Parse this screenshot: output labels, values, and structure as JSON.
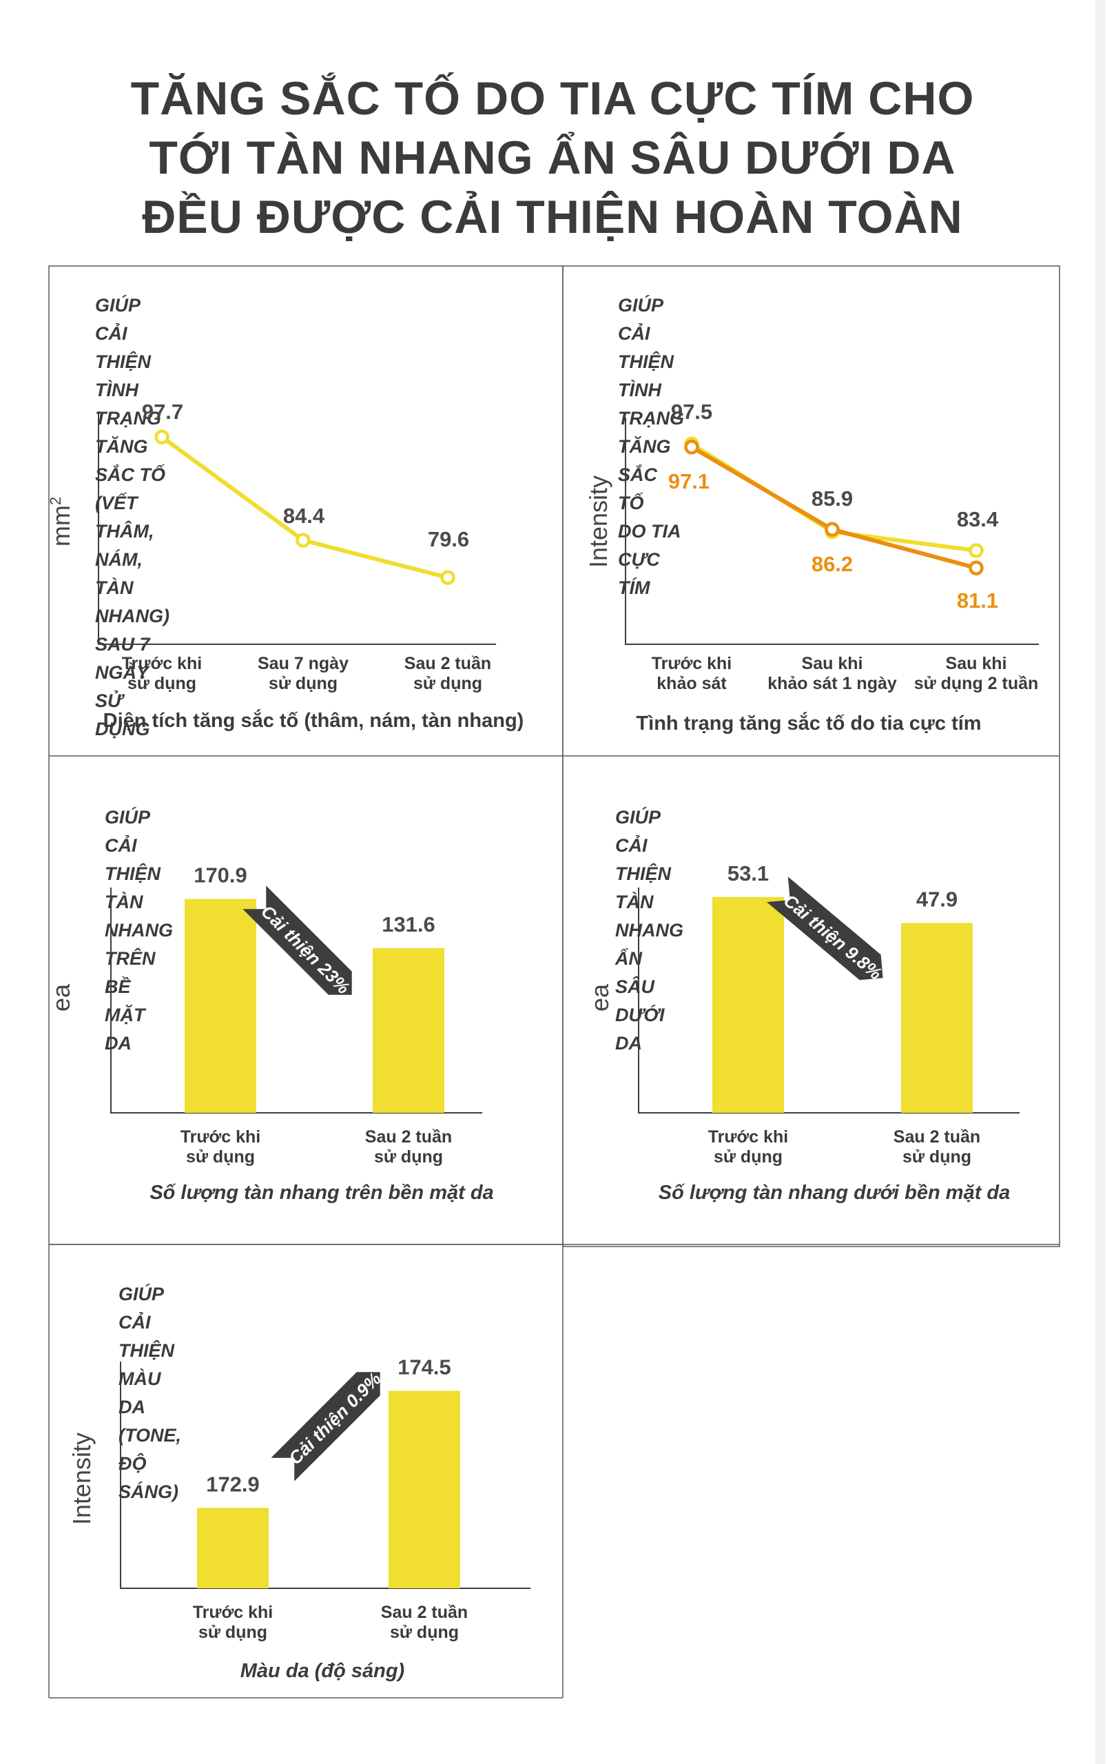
{
  "title_lines": [
    "TĂNG SẮC TỐ DO TIA CỰC TÍM CHO",
    "TỚI TÀN NHANG ẨN SÂU DƯỚI DA",
    "ĐỀU ĐƯỢC CẢI THIỆN HOÀN TOÀN"
  ],
  "colors": {
    "yellow_line": "#f0dd2c",
    "orange_line": "#eb8f10",
    "bar": "#f0de30",
    "badge": "#3d3d3d",
    "axis": "#3d3d3d",
    "text": "#3b3b3b"
  },
  "chart_data": [
    {
      "id": "c1",
      "type": "line",
      "title_lines": [
        "GIÚP CẢI THIỆN TÌNH TRẠNG TĂNG SẮC TỐ",
        "(VẾT THÂM, NÁM, TÀN NHANG) SAU 7 NGÀY",
        "SỬ DỤNG"
      ],
      "categories": [
        [
          "Trước khi",
          "sử dụng"
        ],
        [
          "Sau 7 ngày",
          "sử dụng"
        ],
        [
          "Sau 2 tuần",
          "sử dụng"
        ]
      ],
      "series": [
        {
          "name": "Diện tích",
          "values": [
            97.7,
            84.4,
            79.6
          ],
          "labels": [
            "97.7",
            "84.4",
            "79.6"
          ],
          "color": "#f0dd2c"
        }
      ],
      "ylabel": "mm",
      "ylabel_sup": "2",
      "xlabel": "Diện tích tăng sắc tố (thâm, nám, tàn nhang)",
      "ylim": [
        71,
        101
      ]
    },
    {
      "id": "c2",
      "type": "line",
      "title_lines": [
        "GIÚP CẢI THIỆN TÌNH TRẠNG TĂNG SẮC TỐ",
        "DO TIA CỰC TÍM"
      ],
      "categories": [
        [
          "Trước khi",
          "khảo sát"
        ],
        [
          "Sau khi",
          "khảo sát 1 ngày"
        ],
        [
          "Sau khi",
          "sử dụng 2 tuần"
        ]
      ],
      "series": [
        {
          "name": "series-yellow",
          "values": [
            97.5,
            85.9,
            83.4
          ],
          "labels": [
            "97.5",
            "85.9",
            "83.4"
          ],
          "color": "#f0dd2c"
        },
        {
          "name": "series-orange",
          "values": [
            97.1,
            86.2,
            81.1
          ],
          "labels": [
            "97.1",
            "86.2",
            "81.1"
          ],
          "color": "#eb8f10"
        }
      ],
      "ylabel": "Intensity",
      "xlabel": "Tình trạng tăng sắc tố do tia cực tím",
      "ylim": [
        71,
        101
      ]
    },
    {
      "id": "c3",
      "type": "bar",
      "title_lines": [
        "GIÚP CẢI THIỆN TÀN NHANG TRÊN BỀ MẶT DA"
      ],
      "categories": [
        [
          "Trước khi",
          "sử dụng"
        ],
        [
          "Sau 2 tuần",
          "sử dụng"
        ]
      ],
      "values": [
        170.9,
        131.6
      ],
      "labels": [
        "170.9",
        "131.6"
      ],
      "ylabel": "ea",
      "xlabel": "Số lượng tàn nhang trên bền mặt da",
      "badge": "Cải thiện 23%",
      "ylim": [
        0,
        180
      ]
    },
    {
      "id": "c4",
      "type": "bar",
      "title_lines": [
        "GIÚP CẢI THIỆN TÀN NHANG ẨN SÂU DƯỚI DA"
      ],
      "categories": [
        [
          "Trước khi",
          "sử dụng"
        ],
        [
          "Sau 2 tuần",
          "sử dụng"
        ]
      ],
      "values": [
        53.1,
        47.9
      ],
      "labels": [
        "53.1",
        "47.9"
      ],
      "ylabel": "ea",
      "xlabel": "Số lượng tàn nhang dưới bền mặt da",
      "badge": "Cải thiện 9.8%",
      "ylim": [
        10,
        55
      ]
    },
    {
      "id": "c5",
      "type": "bar",
      "title_lines": [
        "GIÚP CẢI THIỆN MÀU DA (TONE, ĐỘ SÁNG)"
      ],
      "categories": [
        [
          "Trước khi",
          "sử dụng"
        ],
        [
          "Sau 2 tuần",
          "sử dụng"
        ]
      ],
      "values": [
        172.9,
        174.5
      ],
      "labels": [
        "172.9",
        "174.5"
      ],
      "ylabel": "Intensity",
      "xlabel": "Màu da (độ sáng)",
      "badge": "Cải thiện 0.9%",
      "ylim": [
        171.8,
        174.9
      ]
    }
  ]
}
